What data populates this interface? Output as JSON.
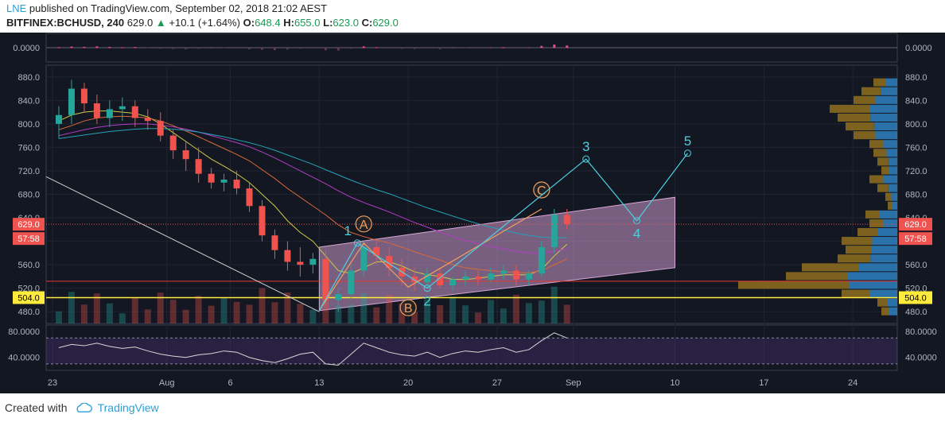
{
  "header": {
    "user": "LNE",
    "published": "published on TradingView.com, September 02, 2018 21:02 AEST",
    "symbol": "BITFINEX:BCHUSD, 240",
    "price": "629.0",
    "change": "+10.1 (+1.64%)",
    "o_label": "O:",
    "o": "648.4",
    "h_label": "H:",
    "h": "655.0",
    "l_label": "L:",
    "l": "623.0",
    "c_label": "C:",
    "c": "629.0",
    "up_arrow_color": "#1a9a54"
  },
  "footer": {
    "created_with": "Created with",
    "brand": "TradingView"
  },
  "chart_data": {
    "type": "candlestick",
    "theme": {
      "background": "#131722",
      "bull": "#26a69a",
      "bear": "#ef5350",
      "grid": "#1f2433"
    },
    "price_axis": {
      "ticks": [
        880,
        840,
        800,
        760,
        720,
        680,
        640,
        600,
        560,
        520,
        480
      ],
      "tick_labels": [
        "880.0",
        "840.0",
        "800.0",
        "760.0",
        "720.0",
        "680.0",
        "640.0",
        "600.0",
        "560.0",
        "520.0",
        "480.0"
      ],
      "ylim": [
        460,
        900
      ]
    },
    "time_axis": {
      "labels": [
        "23",
        "Aug",
        "6",
        "13",
        "20",
        "27",
        "Sep",
        "10",
        "17",
        "24"
      ],
      "day_index": [
        0,
        9,
        14,
        21,
        28,
        35,
        41,
        49,
        56,
        63
      ],
      "xlim": [
        -0.5,
        66.5
      ]
    },
    "price_badge": {
      "value": "629.0",
      "timer": "57:58",
      "color": "#ef5350"
    },
    "support_line": {
      "value": 504,
      "label": "504.0",
      "color": "#ffeb3b"
    },
    "red_hline": {
      "value": 532
    },
    "candles_daily_ohlc": [
      [
        800,
        830,
        775,
        815
      ],
      [
        815,
        875,
        800,
        860
      ],
      [
        860,
        870,
        820,
        835
      ],
      [
        835,
        850,
        800,
        810
      ],
      [
        810,
        840,
        795,
        825
      ],
      [
        825,
        845,
        805,
        830
      ],
      [
        830,
        840,
        795,
        810
      ],
      [
        810,
        825,
        790,
        805
      ],
      [
        805,
        820,
        770,
        780
      ],
      [
        780,
        790,
        740,
        755
      ],
      [
        755,
        770,
        720,
        740
      ],
      [
        740,
        760,
        700,
        715
      ],
      [
        715,
        725,
        690,
        700
      ],
      [
        700,
        715,
        685,
        705
      ],
      [
        705,
        720,
        680,
        690
      ],
      [
        690,
        700,
        650,
        660
      ],
      [
        660,
        670,
        600,
        610
      ],
      [
        610,
        620,
        570,
        585
      ],
      [
        585,
        600,
        550,
        565
      ],
      [
        565,
        590,
        540,
        560
      ],
      [
        560,
        580,
        545,
        570
      ],
      [
        570,
        585,
        490,
        500
      ],
      [
        500,
        520,
        480,
        510
      ],
      [
        510,
        560,
        500,
        550
      ],
      [
        550,
        600,
        540,
        590
      ],
      [
        590,
        605,
        560,
        575
      ],
      [
        575,
        590,
        540,
        555
      ],
      [
        555,
        570,
        525,
        540
      ],
      [
        540,
        555,
        515,
        530
      ],
      [
        530,
        555,
        520,
        545
      ],
      [
        545,
        555,
        520,
        525
      ],
      [
        525,
        540,
        515,
        535
      ],
      [
        535,
        550,
        525,
        540
      ],
      [
        540,
        550,
        525,
        535
      ],
      [
        535,
        555,
        530,
        545
      ],
      [
        545,
        560,
        535,
        550
      ],
      [
        550,
        560,
        525,
        535
      ],
      [
        535,
        550,
        525,
        545
      ],
      [
        545,
        600,
        540,
        590
      ],
      [
        590,
        655,
        580,
        645
      ],
      [
        645,
        655,
        620,
        629
      ]
    ],
    "moving_averages": [
      {
        "color": "#cfc84a",
        "values": [
          805,
          815,
          820,
          822,
          822,
          820,
          818,
          812,
          800,
          785,
          770,
          755,
          740,
          728,
          715,
          700,
          680,
          660,
          635,
          615,
          600,
          575,
          550,
          545,
          555,
          565,
          565,
          558,
          548,
          543,
          540,
          535,
          535,
          537,
          540,
          543,
          543,
          543,
          552,
          575,
          595
        ]
      },
      {
        "color": "#d96a3a",
        "values": [
          790,
          797,
          805,
          810,
          812,
          813,
          812,
          810,
          805,
          797,
          788,
          778,
          768,
          758,
          748,
          737,
          722,
          707,
          690,
          675,
          660,
          645,
          628,
          615,
          608,
          602,
          597,
          590,
          582,
          575,
          568,
          560,
          555,
          552,
          550,
          548,
          547,
          546,
          550,
          560,
          570
        ]
      },
      {
        "color": "#b33dc6",
        "values": [
          780,
          785,
          790,
          794,
          797,
          799,
          800,
          800,
          798,
          795,
          791,
          786,
          780,
          774,
          768,
          761,
          752,
          742,
          731,
          720,
          709,
          698,
          686,
          675,
          666,
          658,
          650,
          641,
          632,
          624,
          616,
          608,
          601,
          596,
          591,
          587,
          583,
          580,
          580,
          583,
          587
        ]
      },
      {
        "color": "#25a2b8",
        "values": [
          775,
          778,
          781,
          784,
          787,
          789,
          791,
          792,
          792,
          791,
          789,
          786,
          782,
          778,
          773,
          768,
          762,
          755,
          747,
          739,
          731,
          722,
          713,
          704,
          696,
          688,
          681,
          673,
          665,
          657,
          650,
          643,
          636,
          630,
          624,
          619,
          614,
          610,
          607,
          606,
          606
        ]
      }
    ],
    "channel": {
      "upper": [
        [
          21,
          590
        ],
        [
          49,
          675
        ]
      ],
      "lower": [
        [
          21,
          482
        ],
        [
          49,
          555
        ]
      ],
      "fill": "#cc99cc"
    },
    "trendline": {
      "from": [
        -0.5,
        710
      ],
      "to": [
        21,
        480
      ],
      "color": "#d0d0d0"
    },
    "abc_points": [
      {
        "label": "A",
        "x": 24.5,
        "y": 597
      },
      {
        "label": "B",
        "x": 28.0,
        "y": 522
      },
      {
        "label": "C",
        "x": 38.5,
        "y": 655
      }
    ],
    "wave_points": [
      {
        "label": "1",
        "x": 24.0,
        "y": 597
      },
      {
        "label": "2",
        "x": 29.5,
        "y": 520
      },
      {
        "label": "3",
        "x": 42.0,
        "y": 740
      },
      {
        "label": "4",
        "x": 46.0,
        "y": 635
      },
      {
        "label": "5",
        "x": 50.0,
        "y": 750
      }
    ],
    "wave_color": "#4dd0e1",
    "abc_color": "#f0a060",
    "volume_profile": {
      "bins": [
        {
          "price": 870,
          "total": 30,
          "up_frac": 0.5
        },
        {
          "price": 855,
          "total": 45,
          "up_frac": 0.45
        },
        {
          "price": 840,
          "total": 55,
          "up_frac": 0.5
        },
        {
          "price": 825,
          "total": 85,
          "up_frac": 0.4
        },
        {
          "price": 810,
          "total": 75,
          "up_frac": 0.45
        },
        {
          "price": 795,
          "total": 65,
          "up_frac": 0.45
        },
        {
          "price": 780,
          "total": 55,
          "up_frac": 0.5
        },
        {
          "price": 765,
          "total": 35,
          "up_frac": 0.5
        },
        {
          "price": 750,
          "total": 30,
          "up_frac": 0.45
        },
        {
          "price": 735,
          "total": 25,
          "up_frac": 0.45
        },
        {
          "price": 720,
          "total": 20,
          "up_frac": 0.5
        },
        {
          "price": 705,
          "total": 35,
          "up_frac": 0.5
        },
        {
          "price": 690,
          "total": 25,
          "up_frac": 0.45
        },
        {
          "price": 675,
          "total": 15,
          "up_frac": 0.5
        },
        {
          "price": 660,
          "total": 12,
          "up_frac": 0.5
        },
        {
          "price": 645,
          "total": 40,
          "up_frac": 0.55
        },
        {
          "price": 630,
          "total": 35,
          "up_frac": 0.5
        },
        {
          "price": 615,
          "total": 50,
          "up_frac": 0.5
        },
        {
          "price": 600,
          "total": 70,
          "up_frac": 0.45
        },
        {
          "price": 585,
          "total": 65,
          "up_frac": 0.5
        },
        {
          "price": 570,
          "total": 75,
          "up_frac": 0.45
        },
        {
          "price": 555,
          "total": 120,
          "up_frac": 0.4
        },
        {
          "price": 540,
          "total": 140,
          "up_frac": 0.45
        },
        {
          "price": 525,
          "total": 200,
          "up_frac": 0.3
        },
        {
          "price": 510,
          "total": 70,
          "up_frac": 0.5
        },
        {
          "price": 495,
          "total": 25,
          "up_frac": 0.5
        },
        {
          "price": 480,
          "total": 20,
          "up_frac": 0.5
        }
      ],
      "up_color": "#2e7bb8",
      "down_color": "#8a6a1f"
    },
    "macd_pane": {
      "value_label": "0.0000",
      "level": 0
    },
    "rsi_pane": {
      "tick_labels": [
        "80.0000",
        "40.0000"
      ],
      "ticks": [
        80,
        40
      ],
      "ylim": [
        20,
        90
      ],
      "band": [
        30,
        70
      ],
      "values": [
        55,
        60,
        58,
        62,
        57,
        54,
        56,
        50,
        45,
        42,
        40,
        44,
        46,
        50,
        48,
        40,
        35,
        32,
        38,
        45,
        48,
        30,
        28,
        45,
        62,
        55,
        48,
        44,
        42,
        48,
        40,
        46,
        50,
        48,
        52,
        55,
        48,
        52,
        66,
        78,
        70
      ]
    }
  }
}
